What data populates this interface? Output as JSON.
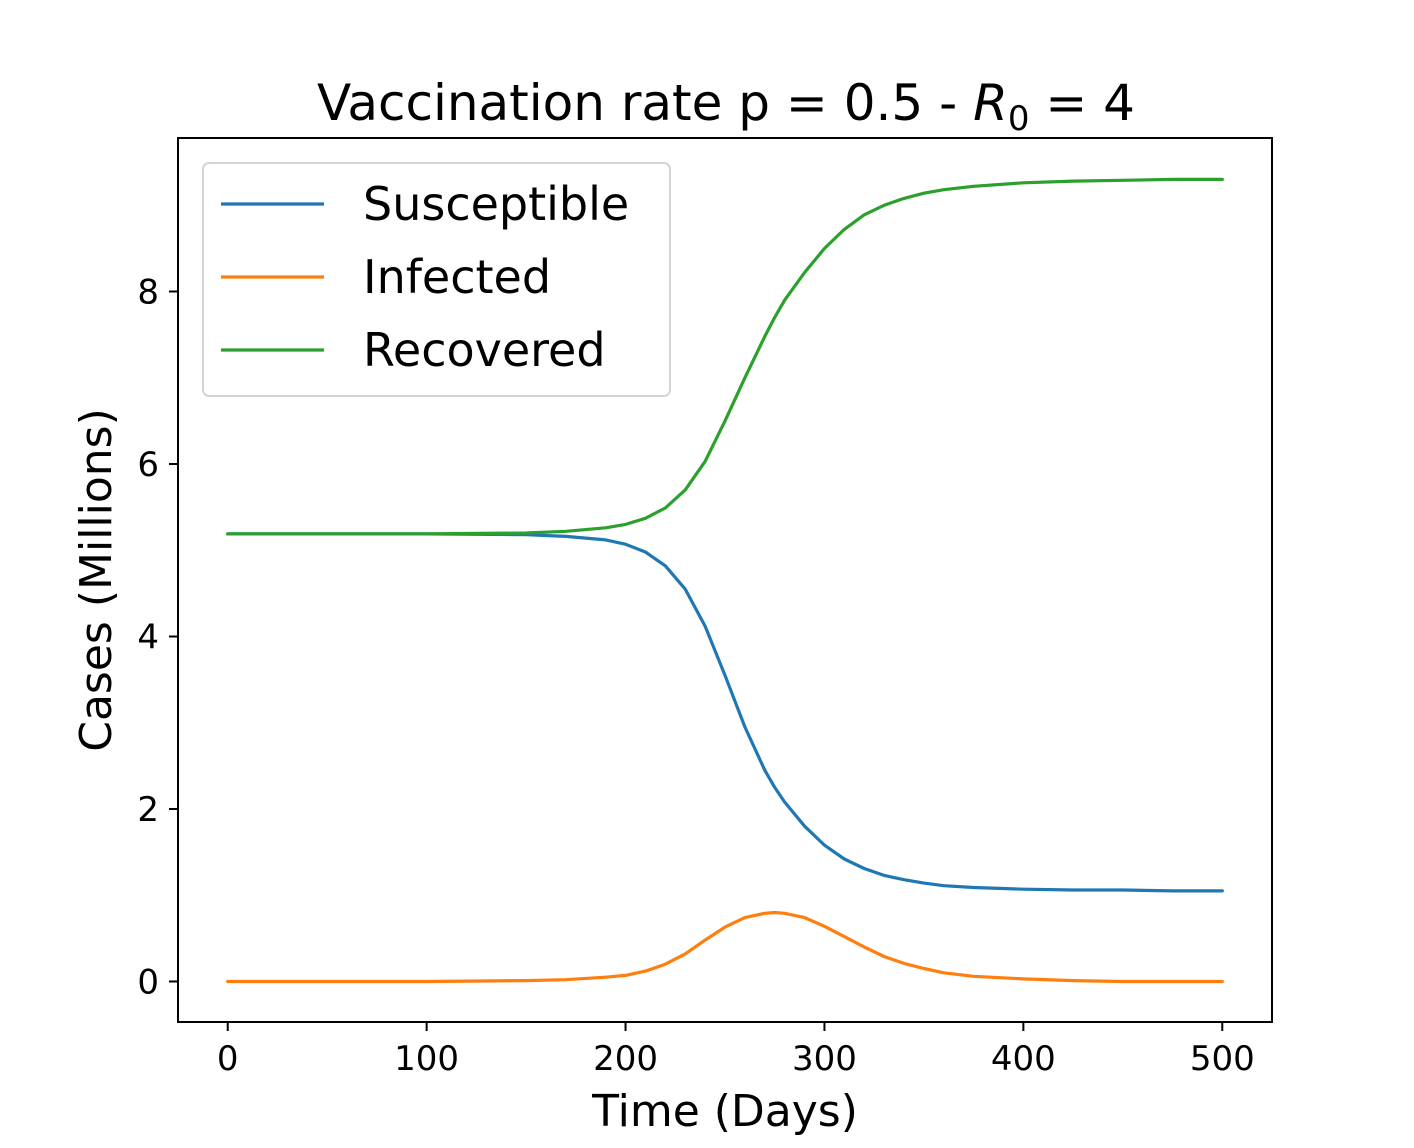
{
  "chart_data": {
    "type": "line",
    "title_main": "Vaccination rate p = 0.5 - ",
    "title_symbol": "R",
    "title_subscript": "0",
    "title_tail": " = 4",
    "xlabel": "Time (Days)",
    "ylabel": "Cases (Millions)",
    "xlim": [
      -25,
      525
    ],
    "ylim": [
      -0.47,
      9.78
    ],
    "xticks": [
      0,
      100,
      200,
      300,
      400,
      500
    ],
    "yticks": [
      0,
      2,
      4,
      6,
      8
    ],
    "grid": false,
    "legend_position": "upper-left",
    "x": [
      0,
      50,
      100,
      150,
      170,
      190,
      200,
      210,
      220,
      230,
      240,
      250,
      260,
      270,
      275,
      280,
      290,
      300,
      310,
      320,
      330,
      340,
      350,
      360,
      375,
      400,
      425,
      450,
      475,
      500
    ],
    "series": [
      {
        "name": "Susceptible",
        "color": "#1f77b4",
        "values": [
          5.19,
          5.19,
          5.19,
          5.18,
          5.16,
          5.12,
          5.07,
          4.98,
          4.82,
          4.55,
          4.12,
          3.55,
          2.95,
          2.45,
          2.25,
          2.08,
          1.8,
          1.58,
          1.42,
          1.31,
          1.23,
          1.18,
          1.14,
          1.11,
          1.09,
          1.07,
          1.06,
          1.06,
          1.05,
          1.05
        ]
      },
      {
        "name": "Infected",
        "color": "#ff7f0e",
        "values": [
          0.0,
          0.0,
          0.0,
          0.01,
          0.02,
          0.05,
          0.07,
          0.12,
          0.2,
          0.32,
          0.48,
          0.63,
          0.74,
          0.79,
          0.8,
          0.79,
          0.74,
          0.64,
          0.52,
          0.4,
          0.29,
          0.21,
          0.15,
          0.1,
          0.06,
          0.03,
          0.01,
          0.0,
          0.0,
          0.0
        ]
      },
      {
        "name": "Recovered",
        "color": "#2ca02c",
        "values": [
          5.19,
          5.19,
          5.19,
          5.2,
          5.22,
          5.26,
          5.3,
          5.37,
          5.49,
          5.7,
          6.03,
          6.5,
          7.0,
          7.48,
          7.7,
          7.9,
          8.22,
          8.5,
          8.72,
          8.89,
          9.0,
          9.08,
          9.14,
          9.18,
          9.22,
          9.26,
          9.28,
          9.29,
          9.3,
          9.3
        ]
      }
    ]
  }
}
